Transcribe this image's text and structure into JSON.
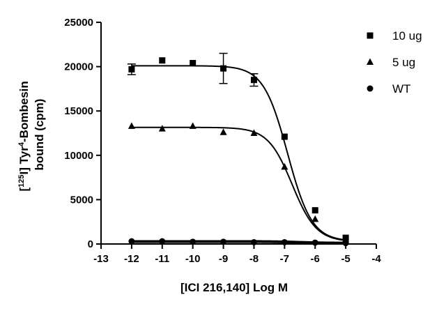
{
  "chart_data": {
    "type": "scatter",
    "title": "",
    "xlabel": "[ICI 216,140] Log M",
    "ylabel": {
      "prefix": "[",
      "superscript": "125",
      "mid": "I] Tyr",
      "superscript2": "4",
      "suffix": "-Bombesin",
      "line2": "bound (cpm)"
    },
    "xlim": [
      -13,
      -4
    ],
    "ylim": [
      0,
      25000
    ],
    "xticks": [
      -13,
      -12,
      -11,
      -10,
      -9,
      -8,
      -7,
      -6,
      -5,
      -4
    ],
    "yticks": [
      0,
      5000,
      10000,
      15000,
      20000,
      25000
    ],
    "xtick_labels": [
      "-13",
      "-12",
      "-11",
      "-10",
      "-9",
      "-8",
      "-7",
      "-6",
      "-5",
      "-4"
    ],
    "ytick_labels": [
      "0",
      "5000",
      "10000",
      "15000",
      "20000",
      "25000"
    ],
    "grid": false,
    "legend_position": "top-right",
    "series": [
      {
        "name": "10 ug",
        "marker": "square",
        "x": [
          -12,
          -11,
          -10,
          -9,
          -8,
          -7,
          -6,
          -5
        ],
        "y": [
          19700,
          20700,
          20400,
          19800,
          18500,
          12100,
          3800,
          700
        ],
        "err": [
          600,
          0,
          0,
          1700,
          700,
          0,
          0,
          0
        ],
        "fit": {
          "top": 20100,
          "bottom": 300,
          "logEC50": -6.9,
          "hill": -1.1
        }
      },
      {
        "name": "5 ug",
        "marker": "triangle",
        "x": [
          -12,
          -11,
          -10,
          -9,
          -8,
          -7,
          -6,
          -5
        ],
        "y": [
          13300,
          13000,
          13300,
          12600,
          12500,
          8700,
          2800,
          500
        ],
        "err": [
          0,
          0,
          0,
          0,
          0,
          0,
          0,
          0
        ],
        "fit": {
          "top": 13150,
          "bottom": 250,
          "logEC50": -6.75,
          "hill": -1.1
        }
      },
      {
        "name": "WT",
        "marker": "circle",
        "x": [
          -12,
          -11,
          -10,
          -9,
          -8,
          -7,
          -6,
          -5
        ],
        "y": [
          300,
          300,
          250,
          250,
          200,
          200,
          150,
          100
        ],
        "err": [
          0,
          0,
          0,
          0,
          0,
          0,
          0,
          0
        ],
        "fit": {
          "top": 280,
          "bottom": 100,
          "logEC50": -6.5,
          "hill": -1.0
        }
      }
    ]
  }
}
